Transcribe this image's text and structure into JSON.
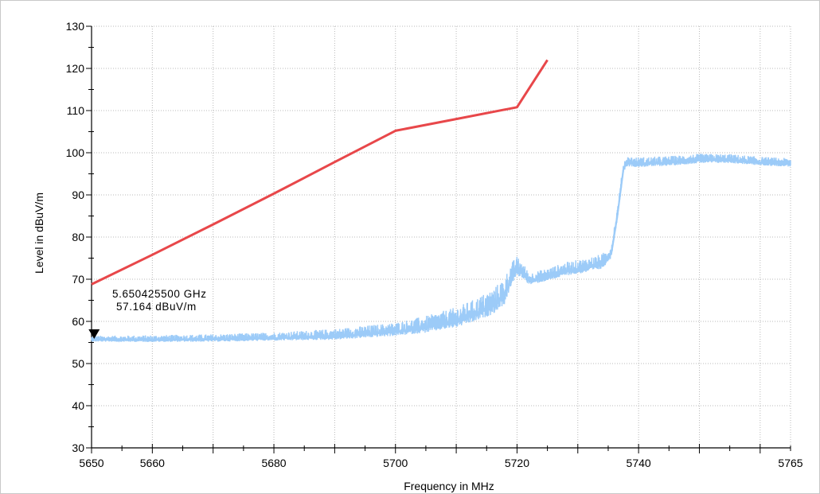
{
  "chart_data": {
    "type": "line",
    "title": "",
    "xlabel": "Frequency in MHz",
    "ylabel": "Level in dBuV/m",
    "xlim": [
      5650,
      5765
    ],
    "ylim": [
      30,
      130
    ],
    "x_ticks": [
      5650,
      5660,
      5680,
      5700,
      5720,
      5740,
      5765
    ],
    "y_ticks": [
      30,
      40,
      50,
      60,
      70,
      80,
      90,
      100,
      110,
      120,
      130
    ],
    "grid": true,
    "series": [
      {
        "color": "#e8474a",
        "points": [
          [
            5650,
            68.8
          ],
          [
            5660,
            75.8
          ],
          [
            5670,
            83.0
          ],
          [
            5680,
            90.3
          ],
          [
            5690,
            97.8
          ],
          [
            5700,
            105.2
          ],
          [
            5710,
            108.0
          ],
          [
            5720,
            110.8
          ],
          [
            5725,
            122.0
          ]
        ]
      },
      {
        "color": "#9ccbf8",
        "points": [
          [
            5650,
            55.6
          ],
          [
            5660,
            55.6
          ],
          [
            5670,
            55.7
          ],
          [
            5680,
            56.0
          ],
          [
            5690,
            56.4
          ],
          [
            5700,
            57.5
          ],
          [
            5705,
            58.5
          ],
          [
            5710,
            60.0
          ],
          [
            5713,
            61.5
          ],
          [
            5716,
            63.5
          ],
          [
            5718,
            66.0
          ],
          [
            5719,
            70.0
          ],
          [
            5720,
            72.2
          ],
          [
            5721,
            71.3
          ],
          [
            5722,
            69.5
          ],
          [
            5725,
            70.5
          ],
          [
            5728,
            71.8
          ],
          [
            5731,
            72.5
          ],
          [
            5734,
            73.5
          ],
          [
            5735.5,
            76.0
          ],
          [
            5736.5,
            85.0
          ],
          [
            5737.5,
            96.0
          ],
          [
            5738,
            97.5
          ],
          [
            5740,
            97.3
          ],
          [
            5745,
            97.6
          ],
          [
            5750,
            98.2
          ],
          [
            5755,
            98.2
          ],
          [
            5760,
            97.6
          ],
          [
            5765,
            97.3
          ]
        ],
        "noise_band": [
          [
            5650,
            0.7
          ],
          [
            5680,
            1.0
          ],
          [
            5700,
            1.6
          ],
          [
            5710,
            2.4
          ],
          [
            5718,
            3.2
          ],
          [
            5722,
            1.4
          ],
          [
            5734,
            1.8
          ],
          [
            5738,
            1.2
          ],
          [
            5765,
            1.0
          ]
        ]
      }
    ],
    "marker": {
      "x": 5650.4255,
      "y": 57.164,
      "frequency_text": "5.650425500 GHz",
      "level_text": "57.164 dBuV/m"
    }
  }
}
